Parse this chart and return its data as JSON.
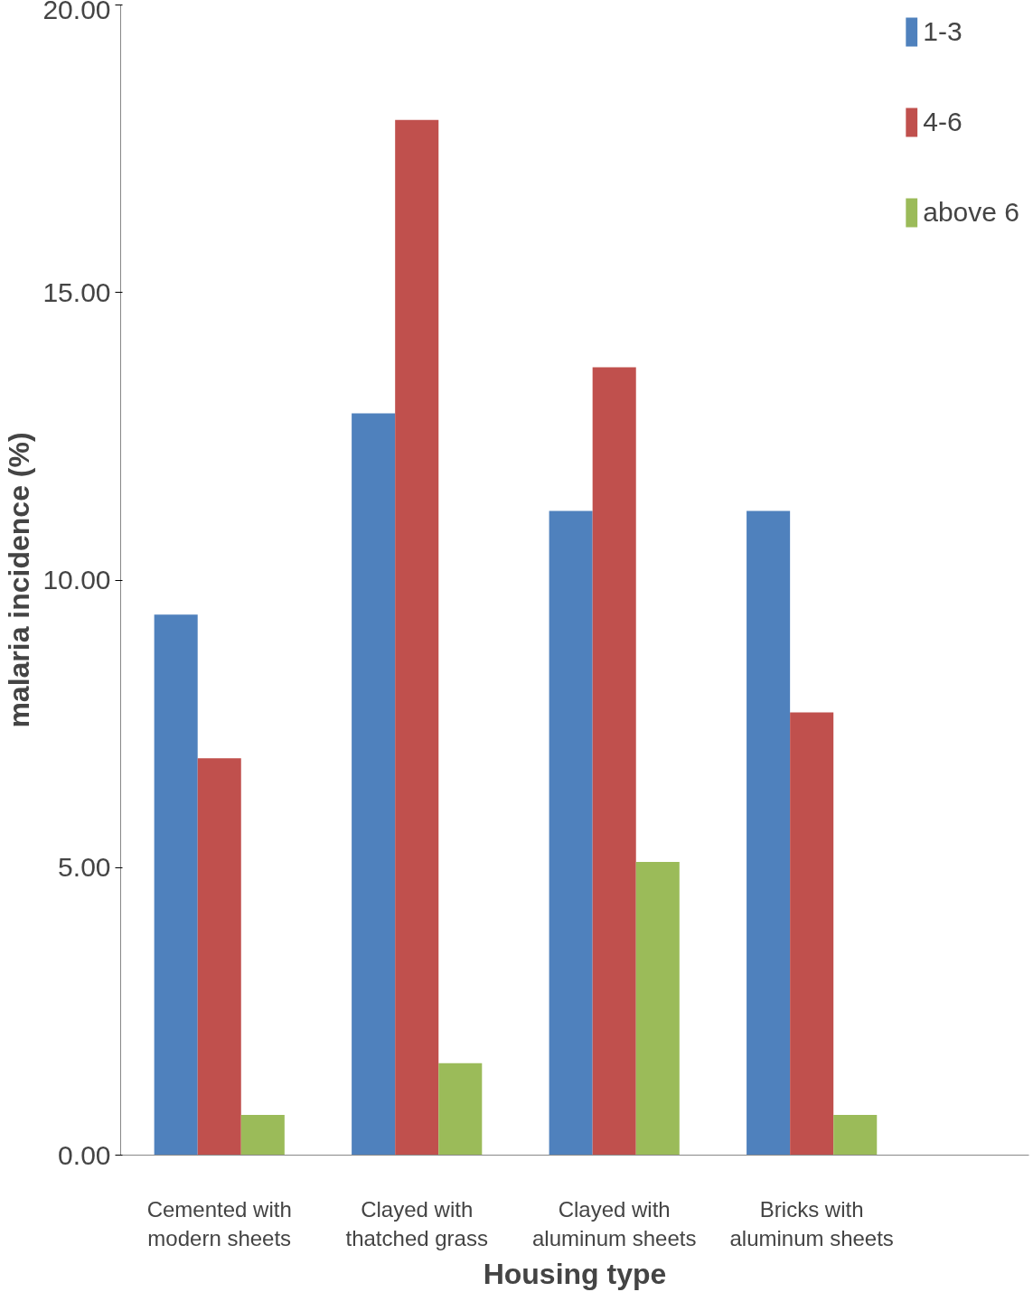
{
  "chart_data": {
    "type": "bar",
    "xlabel": "Housing type",
    "ylabel": "malaria incidence (%)",
    "categories": [
      "Cemented with\nmodern sheets",
      "Clayed with\nthatched grass",
      "Clayed with\naluminum sheets",
      "Bricks with\naluminum sheets"
    ],
    "series": [
      {
        "name": "1-3",
        "color": "#4f81bd",
        "values": [
          9.4,
          12.9,
          11.2,
          11.2
        ]
      },
      {
        "name": "4-6",
        "color": "#c0504d",
        "values": [
          6.9,
          18.0,
          13.7,
          7.7
        ]
      },
      {
        "name": "above 6",
        "color": "#9bbb59",
        "values": [
          0.7,
          1.6,
          5.1,
          0.7
        ]
      }
    ],
    "ylim": [
      0,
      20
    ],
    "yticks": [
      {
        "value": 0,
        "label": "0.00"
      },
      {
        "value": 5,
        "label": "5.00"
      },
      {
        "value": 10,
        "label": "10.00"
      },
      {
        "value": 15,
        "label": "15.00"
      },
      {
        "value": 20,
        "label": "20.00"
      }
    ],
    "grid": false,
    "legend": "top right"
  }
}
